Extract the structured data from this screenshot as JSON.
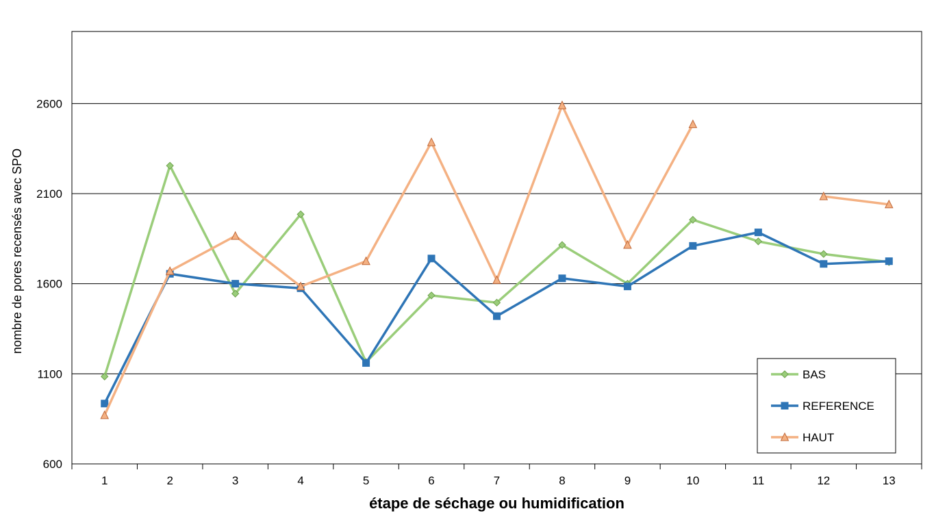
{
  "chart_data": {
    "type": "line",
    "categories": [
      "1",
      "2",
      "3",
      "4",
      "5",
      "6",
      "7",
      "8",
      "9",
      "10",
      "11",
      "12",
      "13"
    ],
    "xlabel": "étape de séchage ou humidification",
    "ylabel": "nombre de pores recensés avec SPO",
    "ylim": [
      600,
      3000
    ],
    "yticks": [
      "600",
      "1100",
      "1600",
      "2100",
      "2600"
    ],
    "grid": "horizontal",
    "legend_position": "bottom-right",
    "series": [
      {
        "name": "BAS",
        "color": "#9ACD7A",
        "marker": "diamond",
        "values": [
          1085,
          2255,
          1545,
          1985,
          1165,
          1535,
          1495,
          1815,
          1600,
          1955,
          1835,
          1765,
          1720
        ]
      },
      {
        "name": "REFERENCE",
        "color": "#2E75B6",
        "marker": "square",
        "values": [
          935,
          1655,
          1600,
          1575,
          1160,
          1740,
          1420,
          1630,
          1585,
          1810,
          1885,
          1710,
          1725
        ]
      },
      {
        "name": "HAUT",
        "color": "#F4B183",
        "marker": "triangle",
        "values": [
          870,
          1670,
          1865,
          1585,
          1725,
          2385,
          1620,
          2590,
          1815,
          2485,
          null,
          2085,
          2040
        ]
      }
    ]
  }
}
